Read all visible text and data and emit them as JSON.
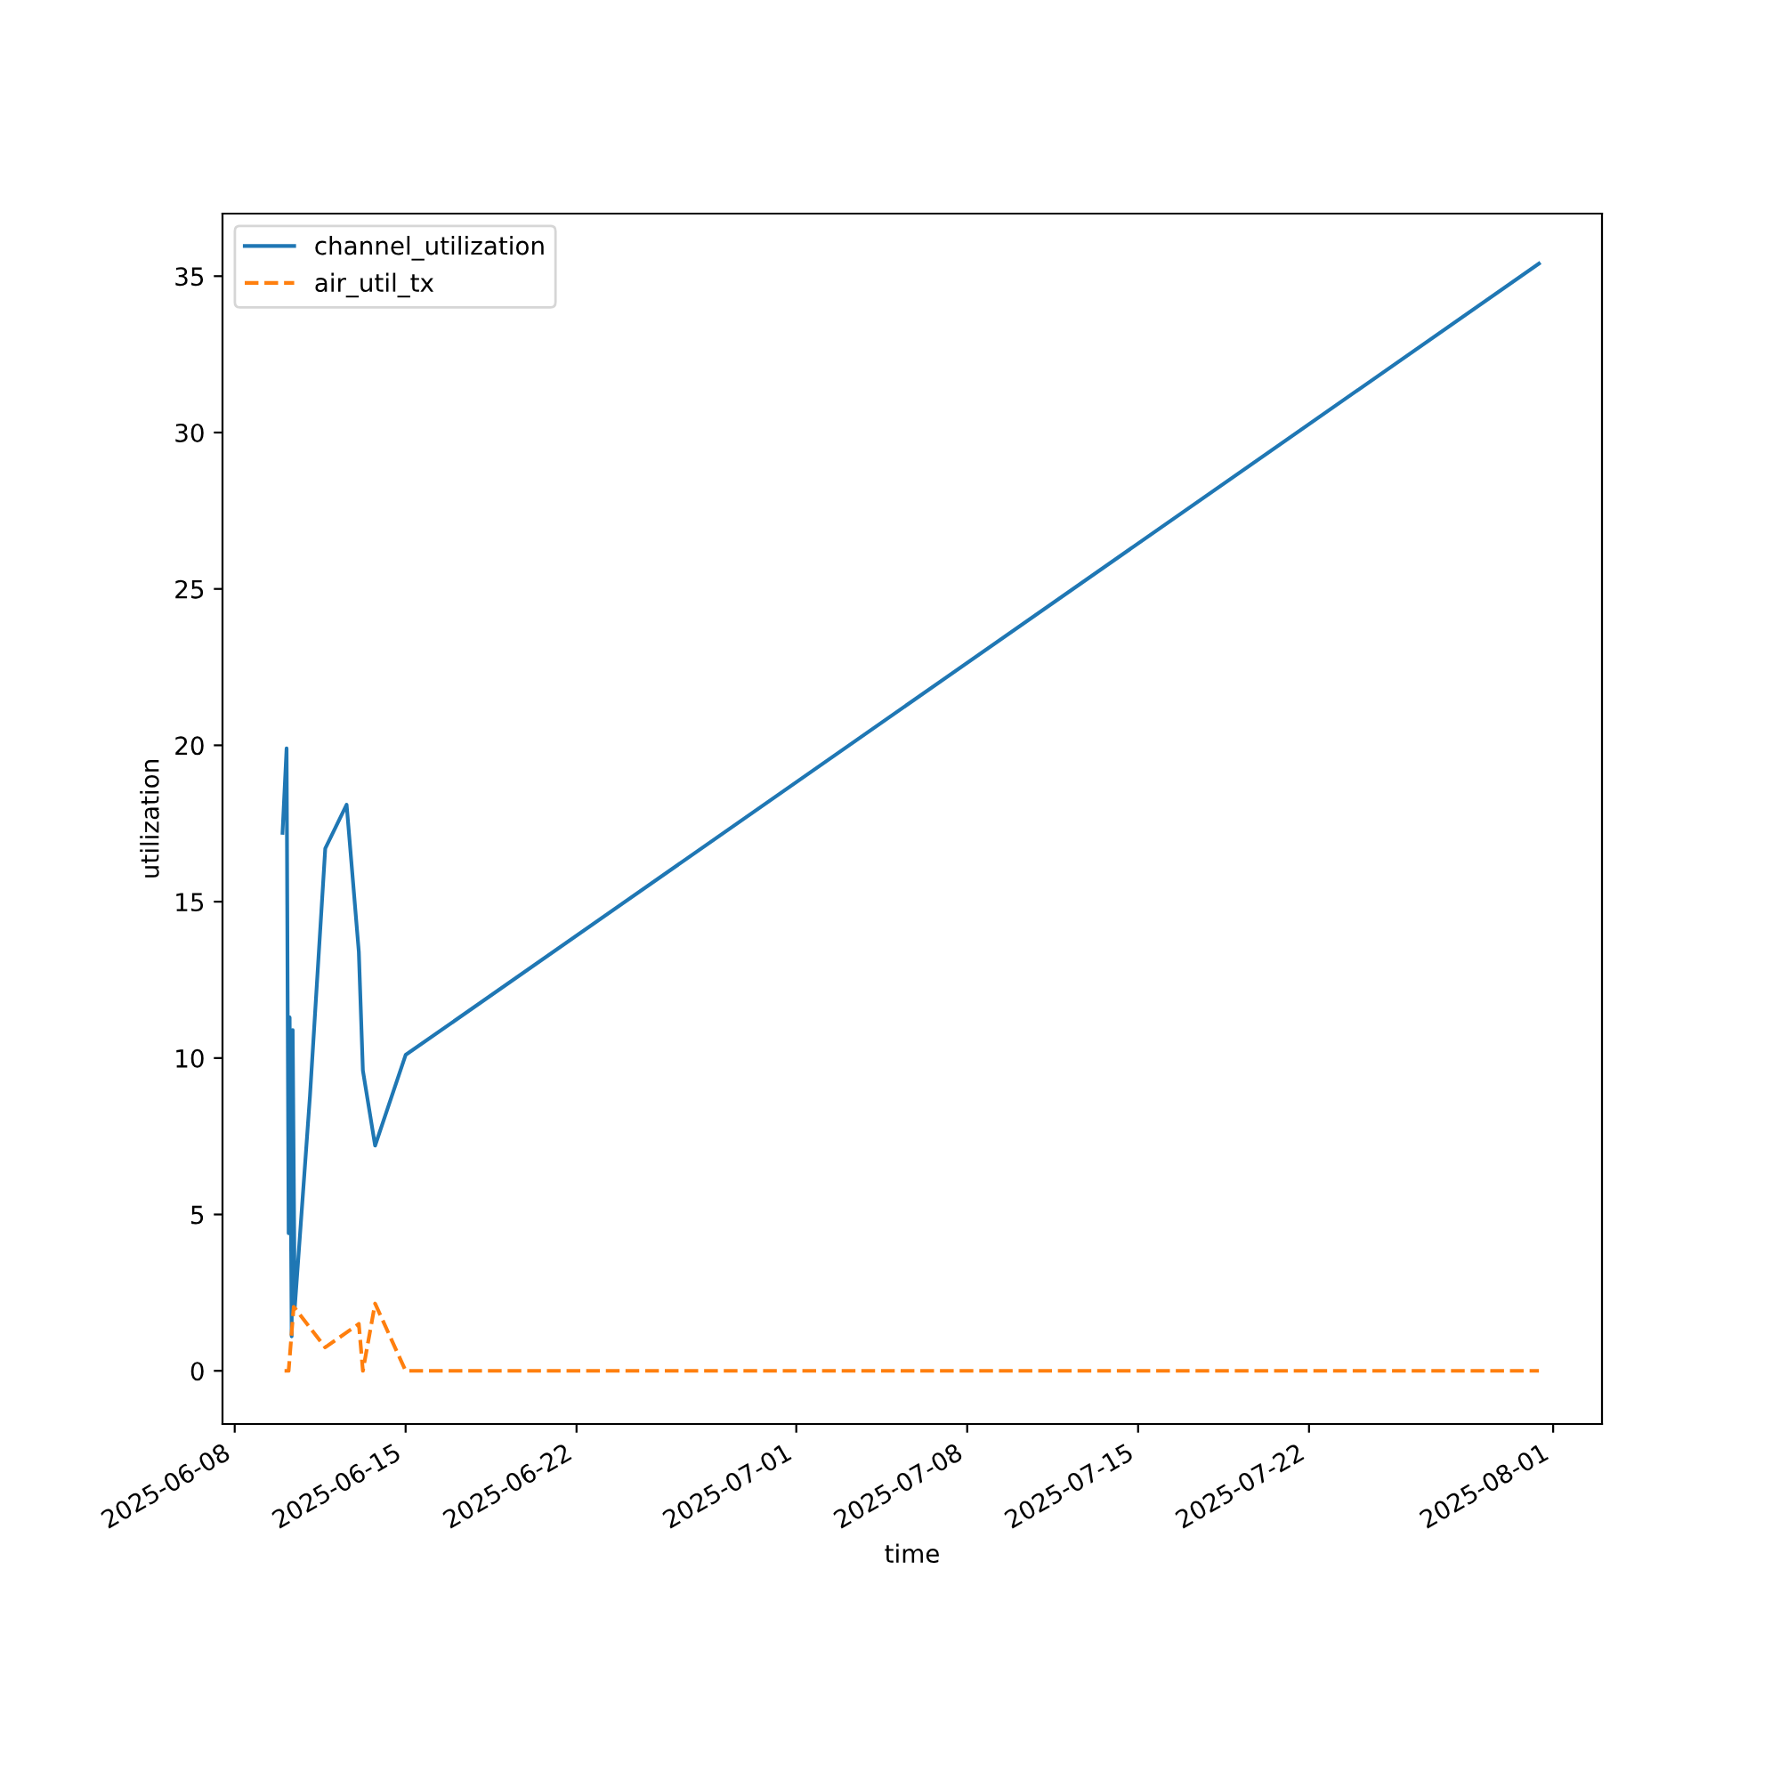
{
  "chart_data": {
    "type": "line",
    "xlabel": "time",
    "ylabel": "utilization",
    "legend": "top left",
    "grid": false,
    "xlim": [
      "2025-06-07T12:00",
      "2025-08-03T00:00"
    ],
    "xticks": [
      "2025-06-08",
      "2025-06-15",
      "2025-06-22",
      "2025-07-01",
      "2025-07-08",
      "2025-07-15",
      "2025-07-22",
      "2025-08-01"
    ],
    "ylim": [
      -1.7,
      37
    ],
    "yticks": [
      0,
      5,
      10,
      15,
      20,
      25,
      30,
      35
    ],
    "series": [
      {
        "name": "channel_utilization",
        "color": "#1f77b4",
        "line_style": "solid",
        "x": [
          "2025-06-09T23:00",
          "2025-06-10T03:00",
          "2025-06-10T05:00",
          "2025-06-10T06:00",
          "2025-06-10T08:00",
          "2025-06-10T09:00",
          "2025-06-10T11:00",
          "2025-06-11T02:00",
          "2025-06-11T17:00",
          "2025-06-12T14:00",
          "2025-06-13T02:00",
          "2025-06-13T06:00",
          "2025-06-13T18:00",
          "2025-06-15T00:00",
          "2025-07-31T10:00"
        ],
        "values": [
          17.2,
          19.9,
          4.4,
          11.3,
          1.1,
          10.9,
          2.0,
          8.8,
          16.7,
          18.1,
          13.4,
          9.6,
          7.2,
          10.1,
          35.4
        ]
      },
      {
        "name": "air_util_tx",
        "color": "#ff7f0e",
        "line_style": "dashed",
        "x": [
          "2025-06-10T01:00",
          "2025-06-10T05:00",
          "2025-06-10T10:00",
          "2025-06-11T17:00",
          "2025-06-13T02:00",
          "2025-06-13T06:00",
          "2025-06-13T18:00",
          "2025-06-15T00:00",
          "2025-07-31T10:00"
        ],
        "values": [
          0,
          0,
          2.05,
          0.75,
          1.5,
          0,
          2.15,
          0,
          0
        ]
      }
    ]
  }
}
